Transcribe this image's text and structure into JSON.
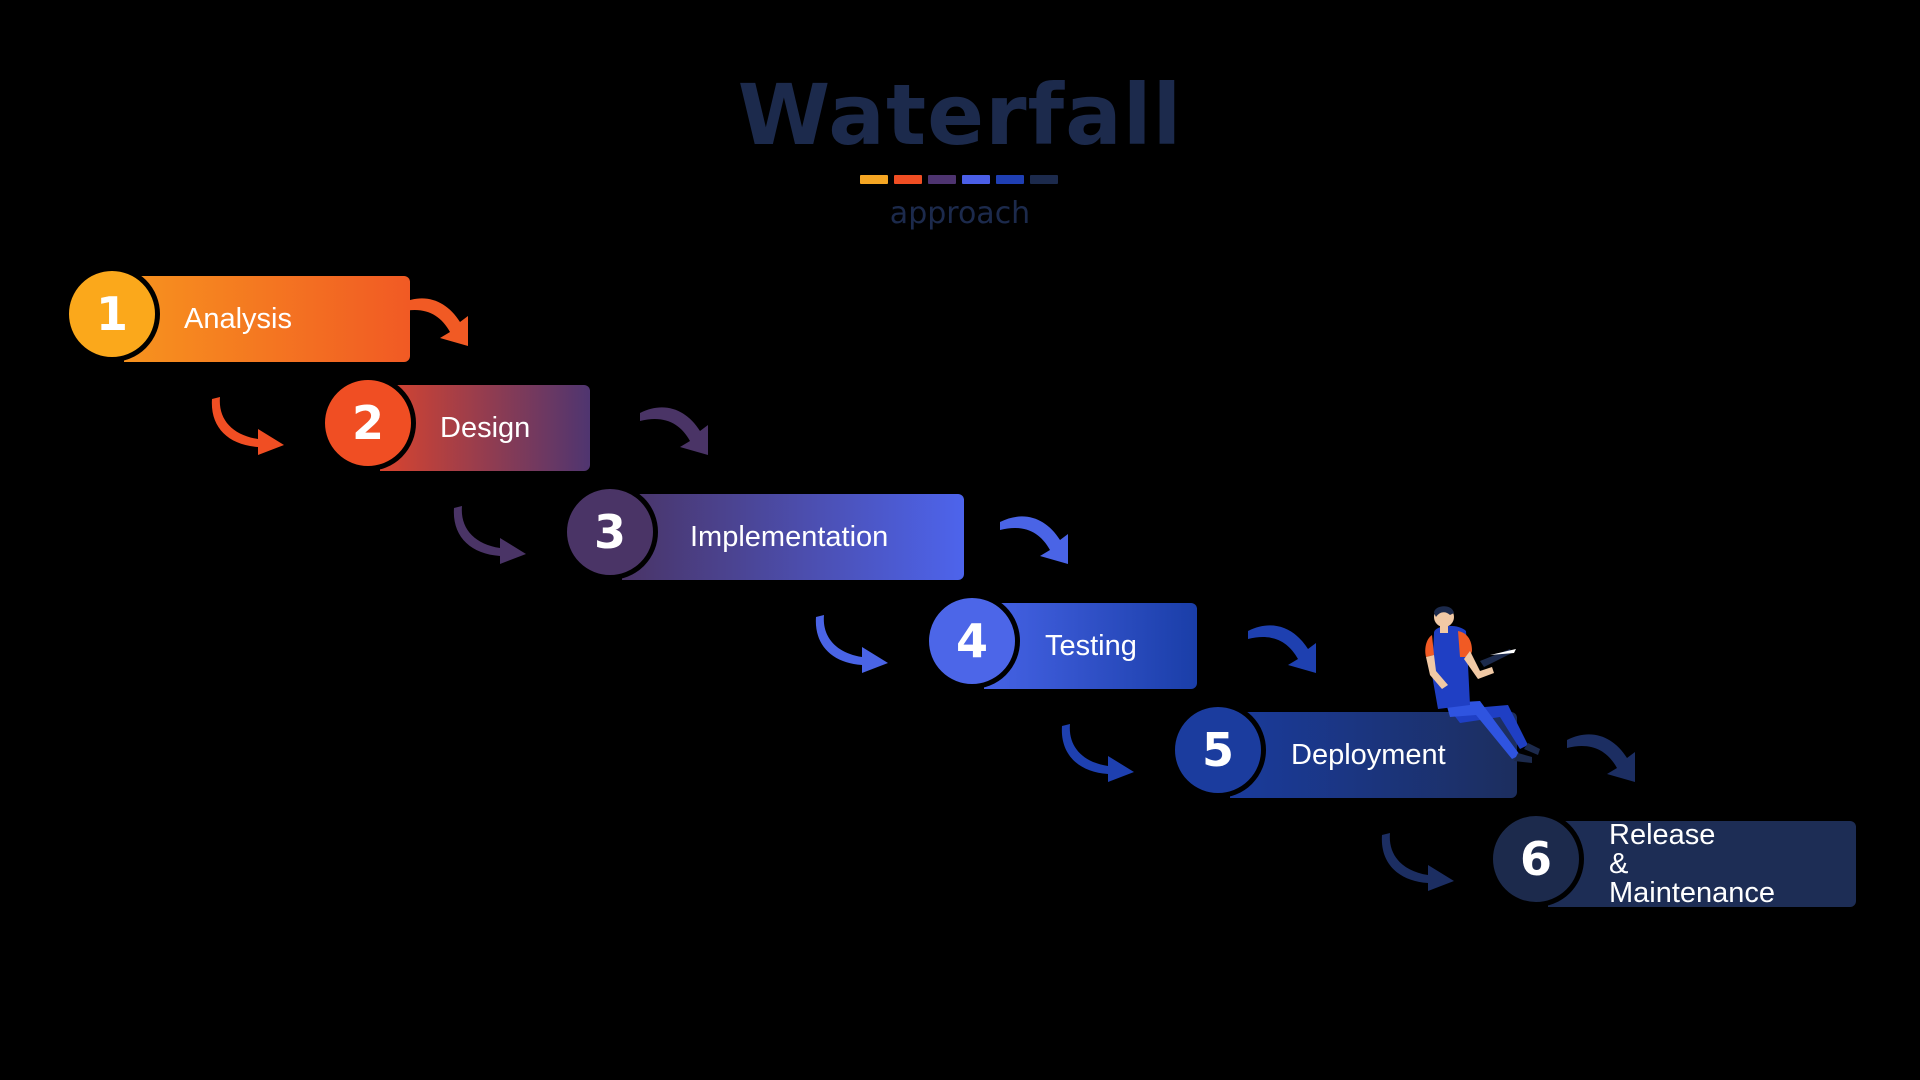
{
  "title": "Waterfall",
  "subtitle": "approach",
  "title_dashes": [
    "#f5a623",
    "#f04e23",
    "#4e3470",
    "#4a5ee6",
    "#1f3fb3",
    "#1c2a4c"
  ],
  "steps": [
    {
      "number": "1",
      "label": "Analysis",
      "circle_color": "#fba81b",
      "bar_from": "#f7931e",
      "bar_to": "#f15a24"
    },
    {
      "number": "2",
      "label": "Design",
      "circle_color": "#f04e23",
      "bar_from": "#d9442e",
      "bar_to": "#4f3570"
    },
    {
      "number": "3",
      "label": "Implementation",
      "circle_color": "#4a3466",
      "bar_from": "#4a3466",
      "bar_to": "#4d64ec"
    },
    {
      "number": "4",
      "label": "Testing",
      "circle_color": "#4c66e8",
      "bar_from": "#4663e6",
      "bar_to": "#1a3ea8"
    },
    {
      "number": "5",
      "label": "Deployment",
      "circle_color": "#1b3c9e",
      "bar_from": "#1a3b9c",
      "bar_to": "#1c2e5e"
    },
    {
      "number": "6",
      "label": "Release\n& Maintenance",
      "circle_color": "#1c2a4c",
      "bar_from": "#1d2d55",
      "bar_to": "#1d2d55"
    }
  ],
  "arrow_colors": {
    "right": [
      "#f15a24",
      "#4a3466",
      "#4a64e6",
      "#1e40b0",
      "#1c2e62"
    ],
    "left": [
      "#f04e23",
      "#4a3466",
      "#4a64e6",
      "#1e40b0",
      "#1c2e62"
    ]
  }
}
